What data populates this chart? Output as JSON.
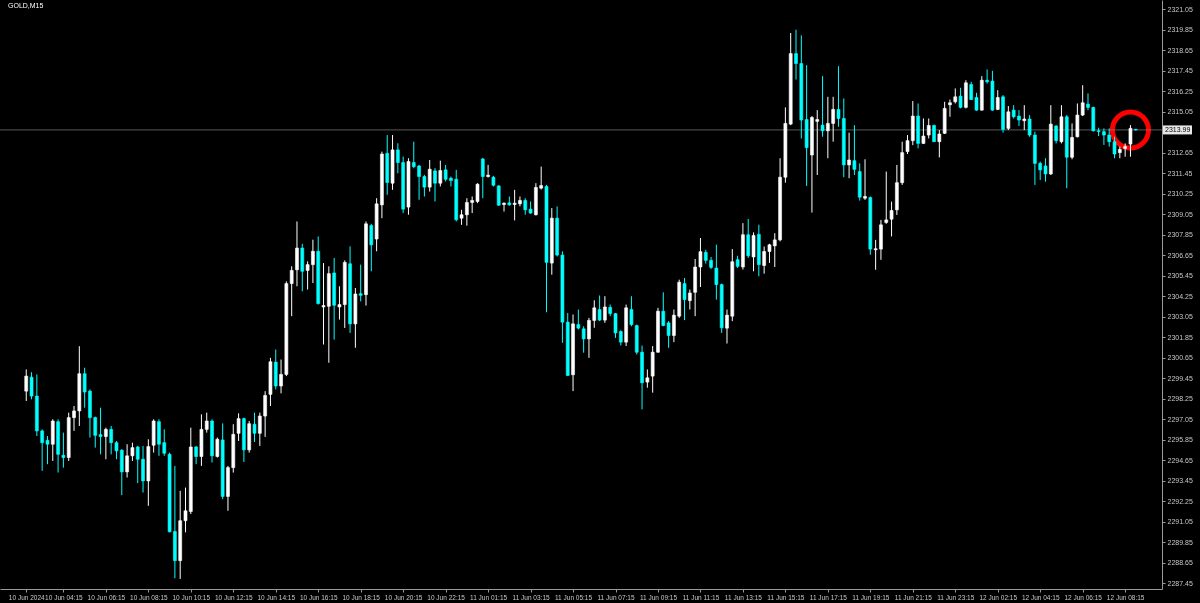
{
  "chart_data": {
    "type": "candlestick",
    "title": "GOLD,M15",
    "categories": [
      "10 Jun 2024",
      null,
      null,
      null,
      null,
      null,
      null,
      "10 Jun 04:15",
      null,
      null,
      null,
      null,
      null,
      null,
      null,
      "10 Jun 06:15",
      null,
      null,
      null,
      null,
      null,
      null,
      null,
      "10 Jun 08:15",
      null,
      null,
      null,
      null,
      null,
      null,
      null,
      "10 Jun 10:15",
      null,
      null,
      null,
      null,
      null,
      null,
      null,
      "10 Jun 12:15",
      null,
      null,
      null,
      null,
      null,
      null,
      null,
      "10 Jun 14:15",
      null,
      null,
      null,
      null,
      null,
      null,
      null,
      "10 Jun 16:15",
      null,
      null,
      null,
      null,
      null,
      null,
      null,
      "10 Jun 18:15",
      null,
      null,
      null,
      null,
      null,
      null,
      null,
      "10 Jun 20:15",
      null,
      null,
      null,
      null,
      null,
      null,
      null,
      "10 Jun 22:15",
      null,
      null,
      null,
      null,
      null,
      null,
      null,
      "11 Jun 01:15",
      null,
      null,
      null,
      null,
      null,
      null,
      null,
      "11 Jun 03:15",
      null,
      null,
      null,
      null,
      null,
      null,
      null,
      "11 Jun 05:15",
      null,
      null,
      null,
      null,
      null,
      null,
      null,
      "11 Jun 07:15",
      null,
      null,
      null,
      null,
      null,
      null,
      null,
      "11 Jun 09:15",
      null,
      null,
      null,
      null,
      null,
      null,
      null,
      "11 Jun 11:15",
      null,
      null,
      null,
      null,
      null,
      null,
      null,
      "11 Jun 13:15",
      null,
      null,
      null,
      null,
      null,
      null,
      null,
      "11 Jun 15:15",
      null,
      null,
      null,
      null,
      null,
      null,
      null,
      "11 Jun 17:15",
      null,
      null,
      null,
      null,
      null,
      null,
      null,
      "11 Jun 19:15",
      null,
      null,
      null,
      null,
      null,
      null,
      null,
      "11 Jun 21:15",
      null,
      null,
      null,
      null,
      null,
      null,
      null,
      "11 Jun 23:15",
      null,
      null,
      null,
      null,
      null,
      null,
      null,
      "12 Jun 02:15",
      null,
      null,
      null,
      null,
      null,
      null,
      null,
      "12 Jun 04:15",
      null,
      null,
      null,
      null,
      null,
      null,
      null,
      "12 Jun 06:15",
      null,
      null,
      null,
      null,
      null,
      null,
      null,
      "12 Jun 08:15",
      null,
      null
    ],
    "ohlc": [
      [
        2298.69,
        2299.96,
        2298.11,
        2299.57
      ],
      [
        2299.51,
        2299.8,
        2298.21,
        2298.4
      ],
      [
        2298.4,
        2299.67,
        2296.06,
        2296.36
      ],
      [
        2296.36,
        2296.45,
        2294.02,
        2295.67
      ],
      [
        2295.81,
        2296.06,
        2294.41,
        2295.58
      ],
      [
        2295.58,
        2297.04,
        2294.6,
        2296.94
      ],
      [
        2296.9,
        2297.04,
        2293.92,
        2294.99
      ],
      [
        2294.93,
        2296.26,
        2294.21,
        2294.8
      ],
      [
        2294.8,
        2297.43,
        2294.6,
        2297.14
      ],
      [
        2297.14,
        2297.82,
        2296.36,
        2297.53
      ],
      [
        2297.53,
        2301.32,
        2296.65,
        2299.71
      ],
      [
        2299.71,
        2300.06,
        2297.72,
        2298.64
      ],
      [
        2298.69,
        2298.79,
        2295.97,
        2297.14
      ],
      [
        2297.14,
        2297.2,
        2295.38,
        2296.1
      ],
      [
        2296.14,
        2297.72,
        2294.99,
        2296.03
      ],
      [
        2296.03,
        2296.55,
        2294.7,
        2296.45
      ],
      [
        2296.45,
        2296.65,
        2294.99,
        2295.67
      ],
      [
        2295.67,
        2295.77,
        2294.7,
        2295.19
      ],
      [
        2295.23,
        2295.29,
        2292.6,
        2293.96
      ],
      [
        2293.96,
        2295.58,
        2293.63,
        2294.9
      ],
      [
        2294.9,
        2295.67,
        2294.6,
        2295.38
      ],
      [
        2295.42,
        2295.48,
        2293.3,
        2294.7
      ],
      [
        2294.7,
        2295.48,
        2292.75,
        2293.43
      ],
      [
        2293.43,
        2295.87,
        2291.97,
        2295.44
      ],
      [
        2295.52,
        2297.04,
        2295.09,
        2296.94
      ],
      [
        2296.9,
        2297.04,
        2294.9,
        2295.58
      ],
      [
        2295.67,
        2296.45,
        2294.9,
        2295.05
      ],
      [
        2294.99,
        2295.09,
        2290.42,
        2290.45
      ],
      [
        2290.47,
        2294.31,
        2287.73,
        2288.76
      ],
      [
        2288.76,
        2292.85,
        2287.69,
        2291.1
      ],
      [
        2291.1,
        2293.04,
        2290.42,
        2291.68
      ],
      [
        2291.64,
        2296.55,
        2291.49,
        2295.42
      ],
      [
        2295.42,
        2295.48,
        2294.41,
        2294.86
      ],
      [
        2294.86,
        2297.33,
        2294.31,
        2296.45
      ],
      [
        2296.45,
        2297.43,
        2296.26,
        2296.94
      ],
      [
        2296.94,
        2297.04,
        2294.51,
        2294.9
      ],
      [
        2294.86,
        2295.97,
        2294.8,
        2295.87
      ],
      [
        2295.83,
        2296.8,
        2292.36,
        2292.52
      ],
      [
        2292.52,
        2294.31,
        2291.68,
        2294.21
      ],
      [
        2294.21,
        2296.75,
        2293.92,
        2296.16
      ],
      [
        2296.22,
        2297.39,
        2295.77,
        2297.08
      ],
      [
        2297.08,
        2297.14,
        2294.54,
        2295.25
      ],
      [
        2295.25,
        2296.94,
        2295.09,
        2296.78
      ],
      [
        2296.75,
        2297.43,
        2295.71,
        2296.22
      ],
      [
        2296.22,
        2297.43,
        2295.48,
        2297.23
      ],
      [
        2297.23,
        2298.69,
        2296.01,
        2298.44
      ],
      [
        2298.5,
        2300.64,
        2297.82,
        2300.41
      ],
      [
        2300.39,
        2301.13,
        2298.79,
        2298.99
      ],
      [
        2298.99,
        2300.54,
        2298.56,
        2299.67
      ],
      [
        2299.67,
        2305.12,
        2299.57,
        2304.99
      ],
      [
        2304.99,
        2306.0,
        2303.08,
        2305.76
      ],
      [
        2305.8,
        2308.63,
        2304.83,
        2307.07
      ],
      [
        2307.07,
        2307.32,
        2304.54,
        2305.71
      ],
      [
        2305.76,
        2306.29,
        2304.64,
        2306.1
      ],
      [
        2306.1,
        2307.56,
        2305.02,
        2306.88
      ],
      [
        2306.88,
        2307.75,
        2303.76,
        2303.82
      ],
      [
        2303.62,
        2306.19,
        2301.42,
        2303.7
      ],
      [
        2303.66,
        2306.0,
        2300.35,
        2305.57
      ],
      [
        2305.61,
        2306.49,
        2301.71,
        2303.72
      ],
      [
        2303.62,
        2304.83,
        2302.88,
        2303.76
      ],
      [
        2303.76,
        2306.35,
        2302.39,
        2306.23
      ],
      [
        2306.15,
        2307.17,
        2302.1,
        2302.63
      ],
      [
        2302.63,
        2304.73,
        2301.23,
        2304.38
      ],
      [
        2304.4,
        2306.1,
        2303.95,
        2304.3
      ],
      [
        2304.34,
        2308.63,
        2303.7,
        2308.49
      ],
      [
        2308.39,
        2308.49,
        2305.71,
        2307.26
      ],
      [
        2307.6,
        2309.99,
        2306.88,
        2309.66
      ],
      [
        2309.6,
        2312.72,
        2308.82,
        2312.58
      ],
      [
        2312.62,
        2313.69,
        2310.19,
        2310.91
      ],
      [
        2310.87,
        2313.69,
        2310.48,
        2312.82
      ],
      [
        2312.82,
        2313.21,
        2311.45,
        2312.08
      ],
      [
        2312.08,
        2312.43,
        2309.12,
        2309.35
      ],
      [
        2309.47,
        2312.33,
        2309.02,
        2312.14
      ],
      [
        2312.08,
        2313.3,
        2311.75,
        2311.84
      ],
      [
        2311.88,
        2311.94,
        2309.9,
        2311.26
      ],
      [
        2311.26,
        2311.36,
        2310.09,
        2310.64
      ],
      [
        2310.64,
        2312.23,
        2310.38,
        2311.69
      ],
      [
        2311.59,
        2311.75,
        2309.8,
        2310.87
      ],
      [
        2310.87,
        2312.19,
        2310.68,
        2311.61
      ],
      [
        2311.65,
        2311.94,
        2310.97,
        2311.1
      ],
      [
        2311.16,
        2311.26,
        2310.68,
        2311.03
      ],
      [
        2311.1,
        2311.65,
        2308.63,
        2308.73
      ],
      [
        2308.82,
        2309.31,
        2308.43,
        2309.02
      ],
      [
        2309.02,
        2309.99,
        2308.38,
        2309.74
      ],
      [
        2309.74,
        2310.09,
        2309.12,
        2309.86
      ],
      [
        2309.8,
        2310.87,
        2309.7,
        2310.81
      ],
      [
        2312.29,
        2312.35,
        2309.99,
        2311.26
      ],
      [
        2311.26,
        2311.94,
        2311.2,
        2311.34
      ],
      [
        2311.22,
        2311.3,
        2310.68,
        2310.75
      ],
      [
        2310.71,
        2310.75,
        2309.55,
        2309.58
      ],
      [
        2309.62,
        2309.74,
        2309.21,
        2309.7
      ],
      [
        2309.72,
        2310.09,
        2309.55,
        2309.6
      ],
      [
        2309.62,
        2310.48,
        2308.69,
        2309.7
      ],
      [
        2309.66,
        2310.09,
        2309.51,
        2309.86
      ],
      [
        2309.86,
        2309.99,
        2309.02,
        2309.31
      ],
      [
        2309.35,
        2309.8,
        2309.08,
        2309.12
      ],
      [
        2309.02,
        2310.87,
        2308.98,
        2310.62
      ],
      [
        2310.58,
        2311.84,
        2310.5,
        2310.73
      ],
      [
        2310.68,
        2310.77,
        2303.31,
        2306.23
      ],
      [
        2306.19,
        2309.41,
        2305.51,
        2308.82
      ],
      [
        2308.82,
        2309.51,
        2306.58,
        2306.66
      ],
      [
        2306.66,
        2306.88,
        2301.52,
        2302.73
      ],
      [
        2302.73,
        2303.27,
        2299.57,
        2299.61
      ],
      [
        2299.65,
        2303.18,
        2298.69,
        2302.63
      ],
      [
        2302.59,
        2303.47,
        2302.3,
        2302.38
      ],
      [
        2302.34,
        2302.49,
        2300.94,
        2301.75
      ],
      [
        2301.75,
        2302.98,
        2300.64,
        2302.83
      ],
      [
        2302.83,
        2304.01,
        2302.4,
        2303.57
      ],
      [
        2303.47,
        2304.29,
        2302.79,
        2302.85
      ],
      [
        2302.85,
        2304.25,
        2302.69,
        2303.62
      ],
      [
        2303.6,
        2303.76,
        2303.08,
        2303.23
      ],
      [
        2303.23,
        2303.27,
        2301.81,
        2302.1
      ],
      [
        2302.18,
        2302.26,
        2301.36,
        2301.56
      ],
      [
        2301.56,
        2303.76,
        2301.33,
        2303.57
      ],
      [
        2303.47,
        2304.25,
        2302.49,
        2302.59
      ],
      [
        2302.53,
        2302.59,
        2300.84,
        2300.97
      ],
      [
        2300.97,
        2301.36,
        2297.62,
        2299.18
      ],
      [
        2299.22,
        2299.96,
        2298.89,
        2299.47
      ],
      [
        2299.57,
        2301.33,
        2298.6,
        2300.97
      ],
      [
        2300.97,
        2303.57,
        2300.94,
        2303.37
      ],
      [
        2303.37,
        2304.48,
        2302.49,
        2302.53
      ],
      [
        2302.69,
        2302.79,
        2301.23,
        2301.95
      ],
      [
        2301.95,
        2303.47,
        2301.56,
        2303.14
      ],
      [
        2303.08,
        2305.22,
        2302.98,
        2305.07
      ],
      [
        2304.99,
        2305.32,
        2302.85,
        2304.05
      ],
      [
        2303.99,
        2304.64,
        2303.47,
        2304.44
      ],
      [
        2304.48,
        2306.43,
        2303.08,
        2305.96
      ],
      [
        2305.96,
        2307.66,
        2304.79,
        2306.86
      ],
      [
        2306.82,
        2306.97,
        2306.16,
        2306.35
      ],
      [
        2306.35,
        2306.55,
        2305.84,
        2305.94
      ],
      [
        2305.9,
        2307.27,
        2304.05,
        2304.93
      ],
      [
        2304.93,
        2304.99,
        2302.1,
        2302.4
      ],
      [
        2302.38,
        2303.47,
        2301.48,
        2303.14
      ],
      [
        2303.08,
        2307.01,
        2302.79,
        2306.27
      ],
      [
        2306.39,
        2306.62,
        2305.9,
        2306.0
      ],
      [
        2305.96,
        2308.53,
        2305.81,
        2307.85
      ],
      [
        2307.85,
        2308.77,
        2306.49,
        2306.62
      ],
      [
        2306.55,
        2307.99,
        2305.71,
        2307.81
      ],
      [
        2307.87,
        2308.44,
        2305.42,
        2306.1
      ],
      [
        2306.05,
        2307.16,
        2305.57,
        2306.87
      ],
      [
        2306.87,
        2307.32,
        2306.2,
        2307.26
      ],
      [
        2307.2,
        2307.94,
        2305.96,
        2307.55
      ],
      [
        2307.55,
        2312.33,
        2307.46,
        2311.22
      ],
      [
        2311.22,
        2315.31,
        2310.9,
        2314.37
      ],
      [
        2314.33,
        2319.67,
        2314.27,
        2318.46
      ],
      [
        2318.46,
        2319.86,
        2316.94,
        2317.88
      ],
      [
        2317.88,
        2319.53,
        2313.49,
        2314.57
      ],
      [
        2314.6,
        2317.78,
        2310.71,
        2312.95
      ],
      [
        2312.52,
        2314.8,
        2309.15,
        2314.72
      ],
      [
        2314.49,
        2315.15,
        2311.35,
        2314.6
      ],
      [
        2314.27,
        2317.14,
        2313.59,
        2313.94
      ],
      [
        2313.94,
        2315.93,
        2312.33,
        2314.37
      ],
      [
        2314.37,
        2315.93,
        2313.3,
        2315.19
      ],
      [
        2315.19,
        2317.72,
        2314.18,
        2314.66
      ],
      [
        2314.66,
        2315.83,
        2311.22,
        2311.94
      ],
      [
        2311.94,
        2313.83,
        2311.16,
        2312.23
      ],
      [
        2312.19,
        2314.27,
        2311.35,
        2311.68
      ],
      [
        2311.55,
        2312.03,
        2309.85,
        2310.05
      ],
      [
        2309.99,
        2312.27,
        2309.89,
        2310.09
      ],
      [
        2310.03,
        2310.09,
        2306.68,
        2307.01
      ],
      [
        2306.97,
        2307.55,
        2305.8,
        2307.03
      ],
      [
        2307.01,
        2308.72,
        2306.38,
        2308.43
      ],
      [
        2308.57,
        2311.55,
        2308.49,
        2308.72
      ],
      [
        2308.76,
        2309.79,
        2307.75,
        2309.27
      ],
      [
        2309.31,
        2311.94,
        2309.01,
        2310.9
      ],
      [
        2310.9,
        2313.3,
        2310.77,
        2312.66
      ],
      [
        2312.72,
        2313.69,
        2312.58,
        2313.36
      ],
      [
        2313.36,
        2315.68,
        2313.1,
        2314.8
      ],
      [
        2314.8,
        2315.54,
        2312.91,
        2313.2
      ],
      [
        2313.2,
        2314.66,
        2313.16,
        2313.63
      ],
      [
        2313.69,
        2314.66,
        2313.49,
        2314.25
      ],
      [
        2314.25,
        2314.3,
        2313.28,
        2313.3
      ],
      [
        2313.3,
        2313.98,
        2312.38,
        2313.75
      ],
      [
        2313.79,
        2315.64,
        2313.75,
        2315.25
      ],
      [
        2315.46,
        2315.77,
        2314.76,
        2315.58
      ],
      [
        2315.64,
        2316.42,
        2315.54,
        2315.93
      ],
      [
        2315.97,
        2316.46,
        2315.25,
        2315.31
      ],
      [
        2315.31,
        2316.9,
        2315.25,
        2316.75
      ],
      [
        2316.65,
        2316.81,
        2315.74,
        2315.77
      ],
      [
        2315.89,
        2316.16,
        2315.11,
        2315.15
      ],
      [
        2315.15,
        2317.14,
        2315.11,
        2316.9
      ],
      [
        2316.9,
        2317.53,
        2316.7,
        2316.81
      ],
      [
        2316.85,
        2317.45,
        2315.11,
        2315.15
      ],
      [
        2315.19,
        2316.32,
        2315.15,
        2315.89
      ],
      [
        2315.93,
        2316.03,
        2313.83,
        2314.02
      ],
      [
        2314.08,
        2315.39,
        2313.98,
        2315.05
      ],
      [
        2315.15,
        2315.44,
        2314.66,
        2314.76
      ],
      [
        2314.8,
        2315.15,
        2314.22,
        2314.57
      ],
      [
        2314.53,
        2315.44,
        2313.98,
        2314.63
      ],
      [
        2314.63,
        2314.86,
        2313.59,
        2313.69
      ],
      [
        2313.69,
        2313.89,
        2310.77,
        2312.03
      ],
      [
        2312.03,
        2312.13,
        2311.06,
        2311.65
      ],
      [
        2311.88,
        2312.33,
        2310.96,
        2311.41
      ],
      [
        2311.41,
        2315.44,
        2311.35,
        2314.33
      ],
      [
        2314.22,
        2314.27,
        2313.2,
        2313.36
      ],
      [
        2313.3,
        2315.44,
        2313.2,
        2314.76
      ],
      [
        2314.76,
        2314.86,
        2310.57,
        2312.39
      ],
      [
        2312.39,
        2314.37,
        2312.27,
        2313.55
      ],
      [
        2313.59,
        2315.54,
        2313.55,
        2314.86
      ],
      [
        2314.86,
        2316.61,
        2314.8,
        2315.58
      ],
      [
        2315.5,
        2316.13,
        2315.15,
        2315.31
      ],
      [
        2315.31,
        2315.35,
        2313.89,
        2313.94
      ],
      [
        2313.94,
        2314.12,
        2313.63,
        2313.89
      ],
      [
        2313.89,
        2314.08,
        2313.11,
        2313.69
      ],
      [
        2313.69,
        2314.08,
        2313.01,
        2313.3
      ],
      [
        2313.3,
        2313.59,
        2312.33,
        2312.58
      ],
      [
        2312.66,
        2313.01,
        2312.33,
        2312.85
      ],
      [
        2312.91,
        2313.2,
        2312.42,
        2313.01
      ],
      [
        2313.16,
        2314.27,
        2312.42,
        2314.08
      ],
      [
        2314.02,
        2314.05,
        2313.95,
        2313.99
      ]
    ],
    "ylim": [
      2287.1,
      2321.6
    ],
    "yticks": [
      2287.45,
      2288.65,
      2289.85,
      2291.05,
      2292.25,
      2293.45,
      2294.65,
      2295.85,
      2297.05,
      2298.25,
      2299.45,
      2300.65,
      2301.85,
      2303.05,
      2304.25,
      2305.45,
      2306.65,
      2307.85,
      2309.05,
      2310.25,
      2311.45,
      2312.65,
      2315.05,
      2316.25,
      2317.45,
      2318.65,
      2319.85,
      2321.05
    ],
    "ref_lines": [
      {
        "axis": "y",
        "value": 2313.99,
        "label": "2313.99",
        "color": "#808080"
      }
    ],
    "grid": false
  }
}
